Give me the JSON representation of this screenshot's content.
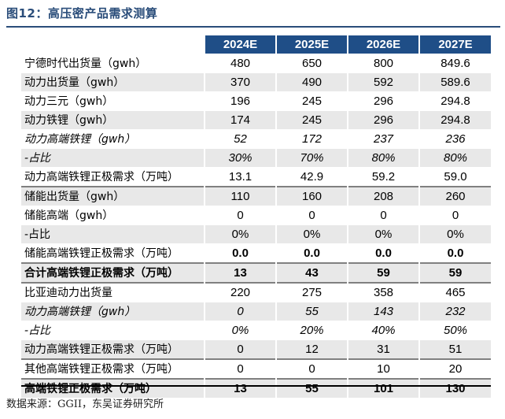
{
  "title": "图12：高压密产品需求测算",
  "source": "数据来源：GGII，东吴证券研究所",
  "columns": [
    "2024E",
    "2025E",
    "2026E",
    "2027E"
  ],
  "rows": [
    {
      "label": "宁德时代出货量（gwh）",
      "values": [
        "480",
        "650",
        "800",
        "849.6"
      ],
      "style": "plain"
    },
    {
      "label": "动力出货量（gwh）",
      "values": [
        "370",
        "490",
        "592",
        "589.6"
      ],
      "style": "shade"
    },
    {
      "label": "动力三元（gwh）",
      "values": [
        "196",
        "245",
        "296",
        "294.8"
      ],
      "style": "plain"
    },
    {
      "label": "动力铁锂（gwh）",
      "values": [
        "174",
        "245",
        "296",
        "294.8"
      ],
      "style": "shade"
    },
    {
      "label": "动力高端铁锂（gwh）",
      "values": [
        "52",
        "172",
        "237",
        "236"
      ],
      "style": "plain italic"
    },
    {
      "label": "-占比",
      "values": [
        "30%",
        "70%",
        "80%",
        "80%"
      ],
      "style": "shade italic"
    },
    {
      "label": "动力高端铁锂正极需求（万吨）",
      "values": [
        "13.1",
        "42.9",
        "59.2",
        "59.0"
      ],
      "style": "plain"
    },
    {
      "label": "储能出货量（gwh）",
      "values": [
        "110",
        "160",
        "208",
        "260"
      ],
      "style": "shade sep"
    },
    {
      "label": "储能高端（gwh）",
      "values": [
        "0",
        "0",
        "0",
        "0"
      ],
      "style": "plain"
    },
    {
      "label": "-占比",
      "values": [
        "0%",
        "0%",
        "0%",
        "0%"
      ],
      "style": "shade"
    },
    {
      "label": "储能高端铁锂正极需求（万吨）",
      "values": [
        "0.0",
        "0.0",
        "0.0",
        "0.0"
      ],
      "style": "plain boldvals"
    },
    {
      "label": "合计高端铁锂正极需求（万吨）",
      "values": [
        "13",
        "43",
        "59",
        "59"
      ],
      "style": "shade bold sep"
    },
    {
      "label": "比亚迪动力出货量",
      "values": [
        "220",
        "275",
        "358",
        "465"
      ],
      "style": "plain sep"
    },
    {
      "label": "动力高端铁锂（gwh）",
      "values": [
        "0",
        "55",
        "143",
        "232"
      ],
      "style": "shade italic"
    },
    {
      "label": "-占比",
      "values": [
        "0%",
        "20%",
        "40%",
        "50%"
      ],
      "style": "plain italic"
    },
    {
      "label": "动力高端铁锂正极需求（万吨）",
      "values": [
        "0",
        "12",
        "31",
        "51"
      ],
      "style": "shade"
    },
    {
      "label": "其他高端铁锂正极需求（万吨）",
      "values": [
        "0",
        "0",
        "10",
        "20"
      ],
      "style": "plain sep"
    },
    {
      "label": "高端铁锂正极需求（万吨）",
      "values": [
        "13",
        "55",
        "101",
        "130"
      ],
      "style": "shade bold sep"
    }
  ],
  "colors": {
    "header_bg": "#1f4e87",
    "title": "#2a4d7a",
    "shade": "#e8e8e8"
  }
}
